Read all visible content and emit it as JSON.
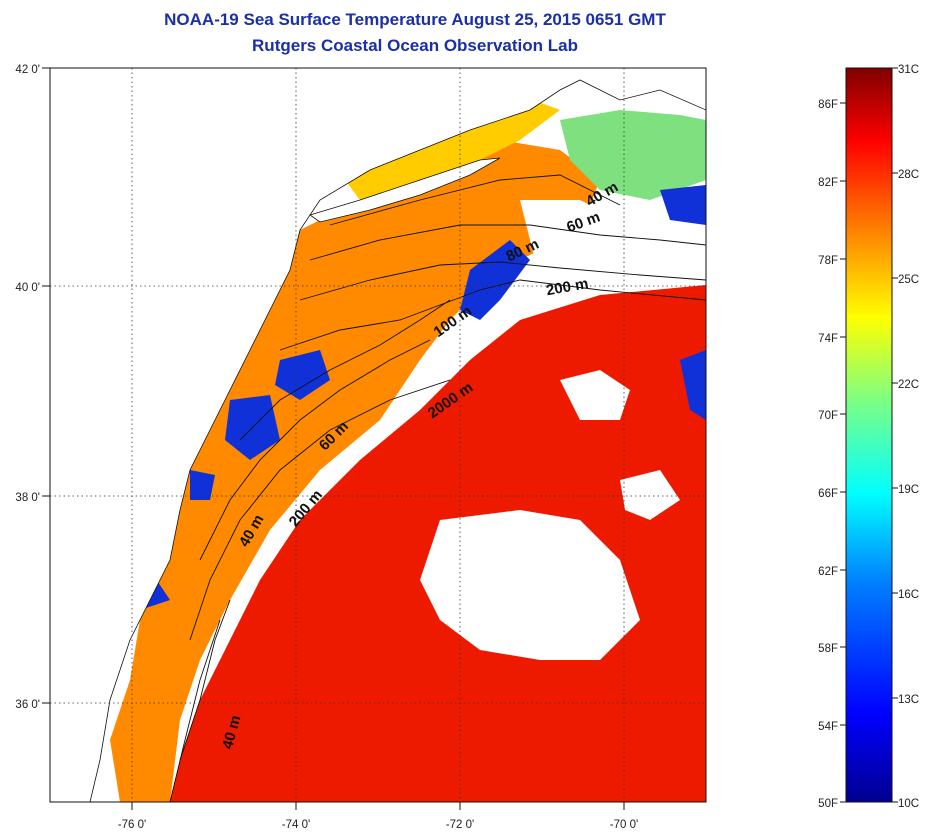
{
  "title": "NOAA-19 Sea Surface Temperature August 25, 2015 0651 GMT",
  "subtitle": "Rutgers Coastal Ocean Observation Lab",
  "map": {
    "lon_ticks": [
      "-76 0'",
      "-74 0'",
      "-72 0'",
      "-70 0'"
    ],
    "lat_ticks": [
      "42 0'",
      "40 0'",
      "38 0'",
      "36 0'"
    ],
    "lon_range": [
      -77.0,
      -69.0
    ],
    "lat_range": [
      35.0,
      42.0
    ],
    "contour_labels": [
      "40 m",
      "60 m",
      "80 m",
      "200 m",
      "100 m",
      "2000 m",
      "60 m",
      "200 m",
      "40 m",
      "40 m"
    ]
  },
  "colorbar": {
    "celsius_labels": [
      "31C",
      "28C",
      "25C",
      "22C",
      "19C",
      "16C",
      "13C",
      "10C"
    ],
    "fahrenheit_labels": [
      "86F",
      "82F",
      "78F",
      "74F",
      "70F",
      "66F",
      "62F",
      "58F",
      "54F",
      "50F"
    ],
    "range_c": [
      10,
      31
    ],
    "colormap": [
      "#00008f",
      "#0000ff",
      "#0080ff",
      "#00ffff",
      "#80ff80",
      "#ffff00",
      "#ff8000",
      "#ff0000",
      "#800000"
    ]
  }
}
